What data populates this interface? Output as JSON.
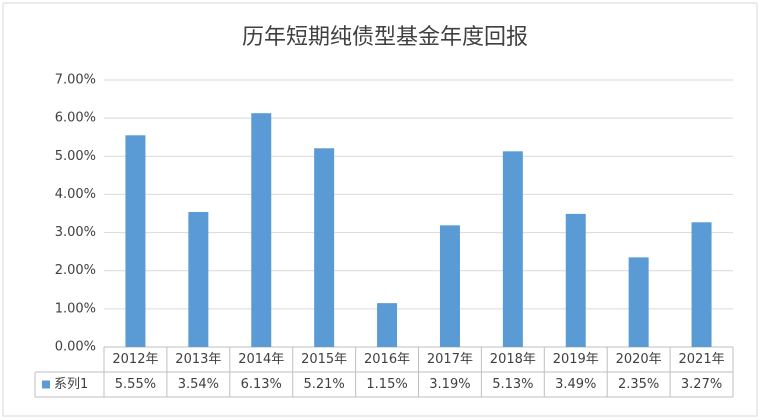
{
  "chart_data": {
    "type": "bar",
    "title": "历年短期纯债型基金年度回报",
    "categories": [
      "2012年",
      "2013年",
      "2014年",
      "2015年",
      "2016年",
      "2017年",
      "2018年",
      "2019年",
      "2020年",
      "2021年"
    ],
    "series": [
      {
        "name": "系列1",
        "color": "#5b9bd5",
        "values": [
          5.55,
          3.54,
          6.13,
          5.21,
          1.15,
          3.19,
          5.13,
          3.49,
          2.35,
          3.27
        ],
        "value_labels": [
          "5.55%",
          "3.54%",
          "6.13%",
          "5.21%",
          "1.15%",
          "3.19%",
          "5.13%",
          "3.49%",
          "2.35%",
          "3.27%"
        ]
      }
    ],
    "ylim": [
      0,
      7
    ],
    "yticks": [
      {
        "value": 0,
        "label": "0.00%"
      },
      {
        "value": 1,
        "label": "1.00%"
      },
      {
        "value": 2,
        "label": "2.00%"
      },
      {
        "value": 3,
        "label": "3.00%"
      },
      {
        "value": 4,
        "label": "4.00%"
      },
      {
        "value": 5,
        "label": "5.00%"
      },
      {
        "value": 6,
        "label": "6.00%"
      },
      {
        "value": 7,
        "label": "7.00%"
      }
    ],
    "grid": true
  }
}
